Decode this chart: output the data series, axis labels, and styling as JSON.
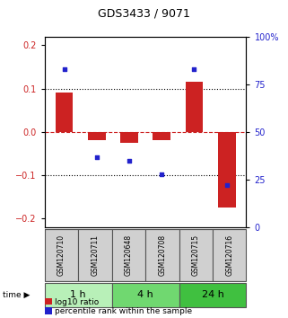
{
  "title": "GDS3433 / 9071",
  "samples": [
    "GSM120710",
    "GSM120711",
    "GSM120648",
    "GSM120708",
    "GSM120715",
    "GSM120716"
  ],
  "log10_ratio": [
    0.09,
    -0.018,
    -0.026,
    -0.018,
    0.115,
    -0.175
  ],
  "percentile_rank": [
    83,
    37,
    35,
    28,
    83,
    22
  ],
  "groups": [
    {
      "label": "1 h",
      "samples": [
        0,
        1
      ],
      "color": "#b8f0b8"
    },
    {
      "label": "4 h",
      "samples": [
        2,
        3
      ],
      "color": "#70d870"
    },
    {
      "label": "24 h",
      "samples": [
        4,
        5
      ],
      "color": "#40c040"
    }
  ],
  "bar_color": "#cc2222",
  "dot_color": "#2222cc",
  "ylim_left": [
    -0.22,
    0.22
  ],
  "ylim_right": [
    0,
    100
  ],
  "yticks_left": [
    -0.2,
    -0.1,
    0.0,
    0.1,
    0.2
  ],
  "yticks_right": [
    0,
    25,
    50,
    75,
    100
  ],
  "hlines_dotted": [
    0.1,
    -0.1
  ],
  "hline_zero_color": "#cc2222",
  "xlabel_color_left": "#cc2222",
  "xlabel_color_right": "#2222cc",
  "sample_box_color": "#d0d0d0",
  "sample_box_edge": "#555555",
  "bar_width": 0.55,
  "title_fontsize": 9,
  "tick_fontsize": 7,
  "sample_fontsize": 5.5,
  "group_fontsize": 8,
  "legend_fontsize": 6.5
}
